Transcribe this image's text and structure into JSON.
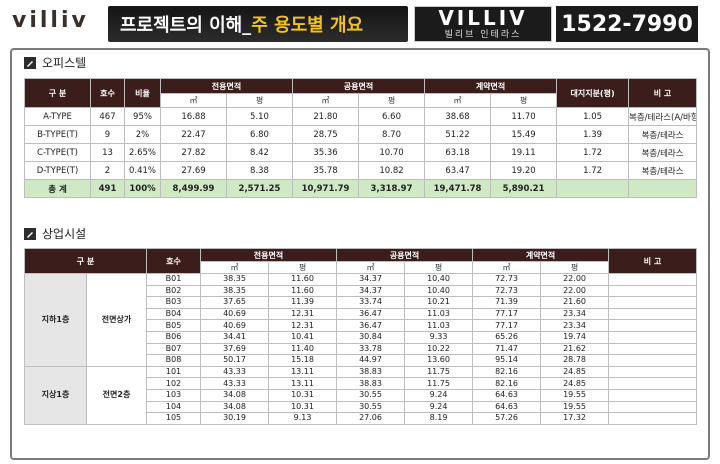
{
  "header": {
    "logo": "villiv",
    "title_main": "프로젝트의 이해_",
    "title_accent": "주 용도별 개요",
    "brand_name": "VILLIV",
    "brand_sub": "빌리브 인테라스",
    "phone": "1522-7990"
  },
  "office": {
    "section_title": "오피스텔",
    "headers": {
      "type": "구 분",
      "units": "호수",
      "ratio": "비율",
      "exclusive": "전용면적",
      "common": "공용면적",
      "contract": "계약면적",
      "land": "대지지분(평)",
      "note": "비 고",
      "sqm": "㎡",
      "pyeong": "평"
    },
    "rows": [
      {
        "type": "A-TYPE",
        "units": "467",
        "ratio": "95%",
        "ex_m": "16.88",
        "ex_p": "5.10",
        "co_m": "21.80",
        "co_p": "6.60",
        "ct_m": "38.68",
        "ct_p": "11.70",
        "land": "1.05",
        "note": "복층/테라스(A/바항)"
      },
      {
        "type": "B-TYPE(T)",
        "units": "9",
        "ratio": "2%",
        "ex_m": "22.47",
        "ex_p": "6.80",
        "co_m": "28.75",
        "co_p": "8.70",
        "ct_m": "51.22",
        "ct_p": "15.49",
        "land": "1.39",
        "note": "복층/테라스"
      },
      {
        "type": "C-TYPE(T)",
        "units": "13",
        "ratio": "2.65%",
        "ex_m": "27.82",
        "ex_p": "8.42",
        "co_m": "35.36",
        "co_p": "10.70",
        "ct_m": "63.18",
        "ct_p": "19.11",
        "land": "1.72",
        "note": "복층/테라스"
      },
      {
        "type": "D-TYPE(T)",
        "units": "2",
        "ratio": "0.41%",
        "ex_m": "27.69",
        "ex_p": "8.38",
        "co_m": "35.78",
        "co_p": "10.82",
        "ct_m": "63.47",
        "ct_p": "19.20",
        "land": "1.72",
        "note": "복층/테라스"
      }
    ],
    "total": {
      "type": "총 계",
      "units": "491",
      "ratio": "100%",
      "ex_m": "8,499.99",
      "ex_p": "2,571.25",
      "co_m": "10,971.79",
      "co_p": "3,318.97",
      "ct_m": "19,471.78",
      "ct_p": "5,890.21",
      "land": "",
      "note": ""
    }
  },
  "commercial": {
    "section_title": "상업시설",
    "headers": {
      "type": "구 분",
      "unit": "호수",
      "exclusive": "전용면적",
      "common": "공용면적",
      "contract": "계약면적",
      "note": "비 고",
      "sqm": "㎡",
      "pyeong": "평"
    },
    "groups": [
      {
        "floor": "지하1층",
        "zone": "전면상가",
        "rows": [
          {
            "unit": "B01",
            "ex_m": "38.35",
            "ex_p": "11.60",
            "co_m": "34.37",
            "co_p": "10.40",
            "ct_m": "72.73",
            "ct_p": "22.00"
          },
          {
            "unit": "B02",
            "ex_m": "38.35",
            "ex_p": "11.60",
            "co_m": "34.37",
            "co_p": "10.40",
            "ct_m": "72.73",
            "ct_p": "22.00"
          },
          {
            "unit": "B03",
            "ex_m": "37.65",
            "ex_p": "11.39",
            "co_m": "33.74",
            "co_p": "10.21",
            "ct_m": "71.39",
            "ct_p": "21.60"
          },
          {
            "unit": "B04",
            "ex_m": "40.69",
            "ex_p": "12.31",
            "co_m": "36.47",
            "co_p": "11.03",
            "ct_m": "77.17",
            "ct_p": "23.34"
          },
          {
            "unit": "B05",
            "ex_m": "40.69",
            "ex_p": "12.31",
            "co_m": "36.47",
            "co_p": "11.03",
            "ct_m": "77.17",
            "ct_p": "23.34"
          },
          {
            "unit": "B06",
            "ex_m": "34.41",
            "ex_p": "10.41",
            "co_m": "30.84",
            "co_p": "9.33",
            "ct_m": "65.26",
            "ct_p": "19.74"
          },
          {
            "unit": "B07",
            "ex_m": "37.69",
            "ex_p": "11.40",
            "co_m": "33.78",
            "co_p": "10.22",
            "ct_m": "71.47",
            "ct_p": "21.62"
          },
          {
            "unit": "B08",
            "ex_m": "50.17",
            "ex_p": "15.18",
            "co_m": "44.97",
            "co_p": "13.60",
            "ct_m": "95.14",
            "ct_p": "28.78"
          }
        ]
      },
      {
        "floor": "지상1층",
        "zone": "전면2층",
        "rows": [
          {
            "unit": "101",
            "ex_m": "43.33",
            "ex_p": "13.11",
            "co_m": "38.83",
            "co_p": "11.75",
            "ct_m": "82.16",
            "ct_p": "24.85"
          },
          {
            "unit": "102",
            "ex_m": "43.33",
            "ex_p": "13.11",
            "co_m": "38.83",
            "co_p": "11.75",
            "ct_m": "82.16",
            "ct_p": "24.85"
          },
          {
            "unit": "103",
            "ex_m": "34.08",
            "ex_p": "10.31",
            "co_m": "30.55",
            "co_p": "9.24",
            "ct_m": "64.63",
            "ct_p": "19.55"
          },
          {
            "unit": "104",
            "ex_m": "34.08",
            "ex_p": "10.31",
            "co_m": "30.55",
            "co_p": "9.24",
            "ct_m": "64.63",
            "ct_p": "19.55"
          },
          {
            "unit": "105",
            "ex_m": "30.19",
            "ex_p": "9.13",
            "co_m": "27.06",
            "co_p": "8.19",
            "ct_m": "57.26",
            "ct_p": "17.32"
          }
        ]
      }
    ]
  }
}
